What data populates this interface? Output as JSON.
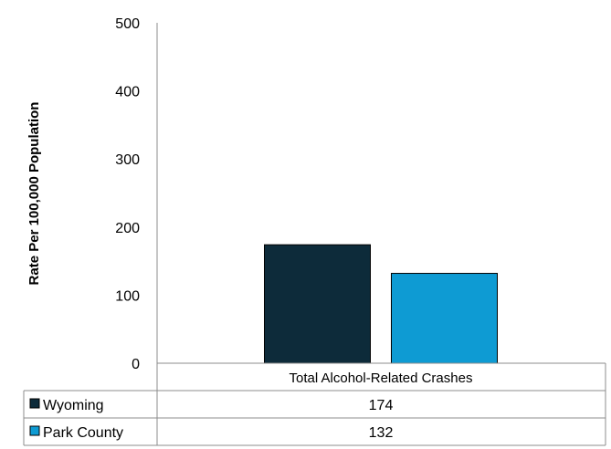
{
  "chart_data": {
    "type": "bar",
    "title": "",
    "xlabel": "",
    "ylabel": "Rate Per 100,000 Population",
    "ylim": [
      0,
      500
    ],
    "yticks": [
      0,
      100,
      200,
      300,
      400,
      500
    ],
    "grid": false,
    "categories": [
      "Total Alcohol-Related Crashes"
    ],
    "series": [
      {
        "name": "Wyoming",
        "values": [
          174
        ],
        "color": "#0d2b3a"
      },
      {
        "name": "Park County",
        "values": [
          132
        ],
        "color": "#0e9bd3"
      }
    ],
    "legend_placement": "data-table"
  }
}
